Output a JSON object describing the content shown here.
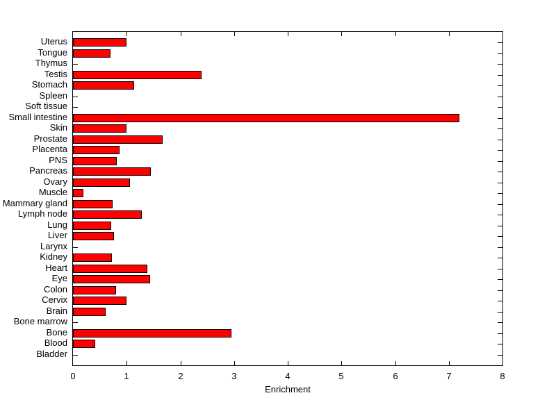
{
  "figure": {
    "background_color": "#ffffff"
  },
  "chart_data": {
    "type": "bar",
    "orientation": "horizontal",
    "title": "",
    "xlabel": "Enrichment",
    "ylabel": "",
    "xlim": [
      0,
      8
    ],
    "xticks": [
      0,
      1,
      2,
      3,
      4,
      5,
      6,
      7,
      8
    ],
    "grid": false,
    "legend": "none",
    "bar_color": "#ff0000",
    "bar_edge_color": "#000000",
    "axis_color": "#000000",
    "background_color": "#ffffff",
    "categories_order": "top-to-bottom",
    "categories": [
      "Uterus",
      "Tongue",
      "Thymus",
      "Testis",
      "Stomach",
      "Spleen",
      "Soft tissue",
      "Small intestine",
      "Skin",
      "Prostate",
      "Placenta",
      "PNS",
      "Pancreas",
      "Ovary",
      "Muscle",
      "Mammary gland",
      "Lymph node",
      "Lung",
      "Liver",
      "Larynx",
      "Kidney",
      "Heart",
      "Eye",
      "Colon",
      "Cervix",
      "Brain",
      "Bone marrow",
      "Bone",
      "Blood",
      "Bladder"
    ],
    "values": [
      1.0,
      0.7,
      0,
      2.4,
      1.14,
      0,
      0,
      7.2,
      1.0,
      1.67,
      0.87,
      0.81,
      1.45,
      1.06,
      0.2,
      0.74,
      1.28,
      0.71,
      0.77,
      0,
      0.73,
      1.38,
      1.44,
      0.8,
      1.0,
      0.61,
      0,
      2.95,
      0.41,
      0
    ]
  }
}
